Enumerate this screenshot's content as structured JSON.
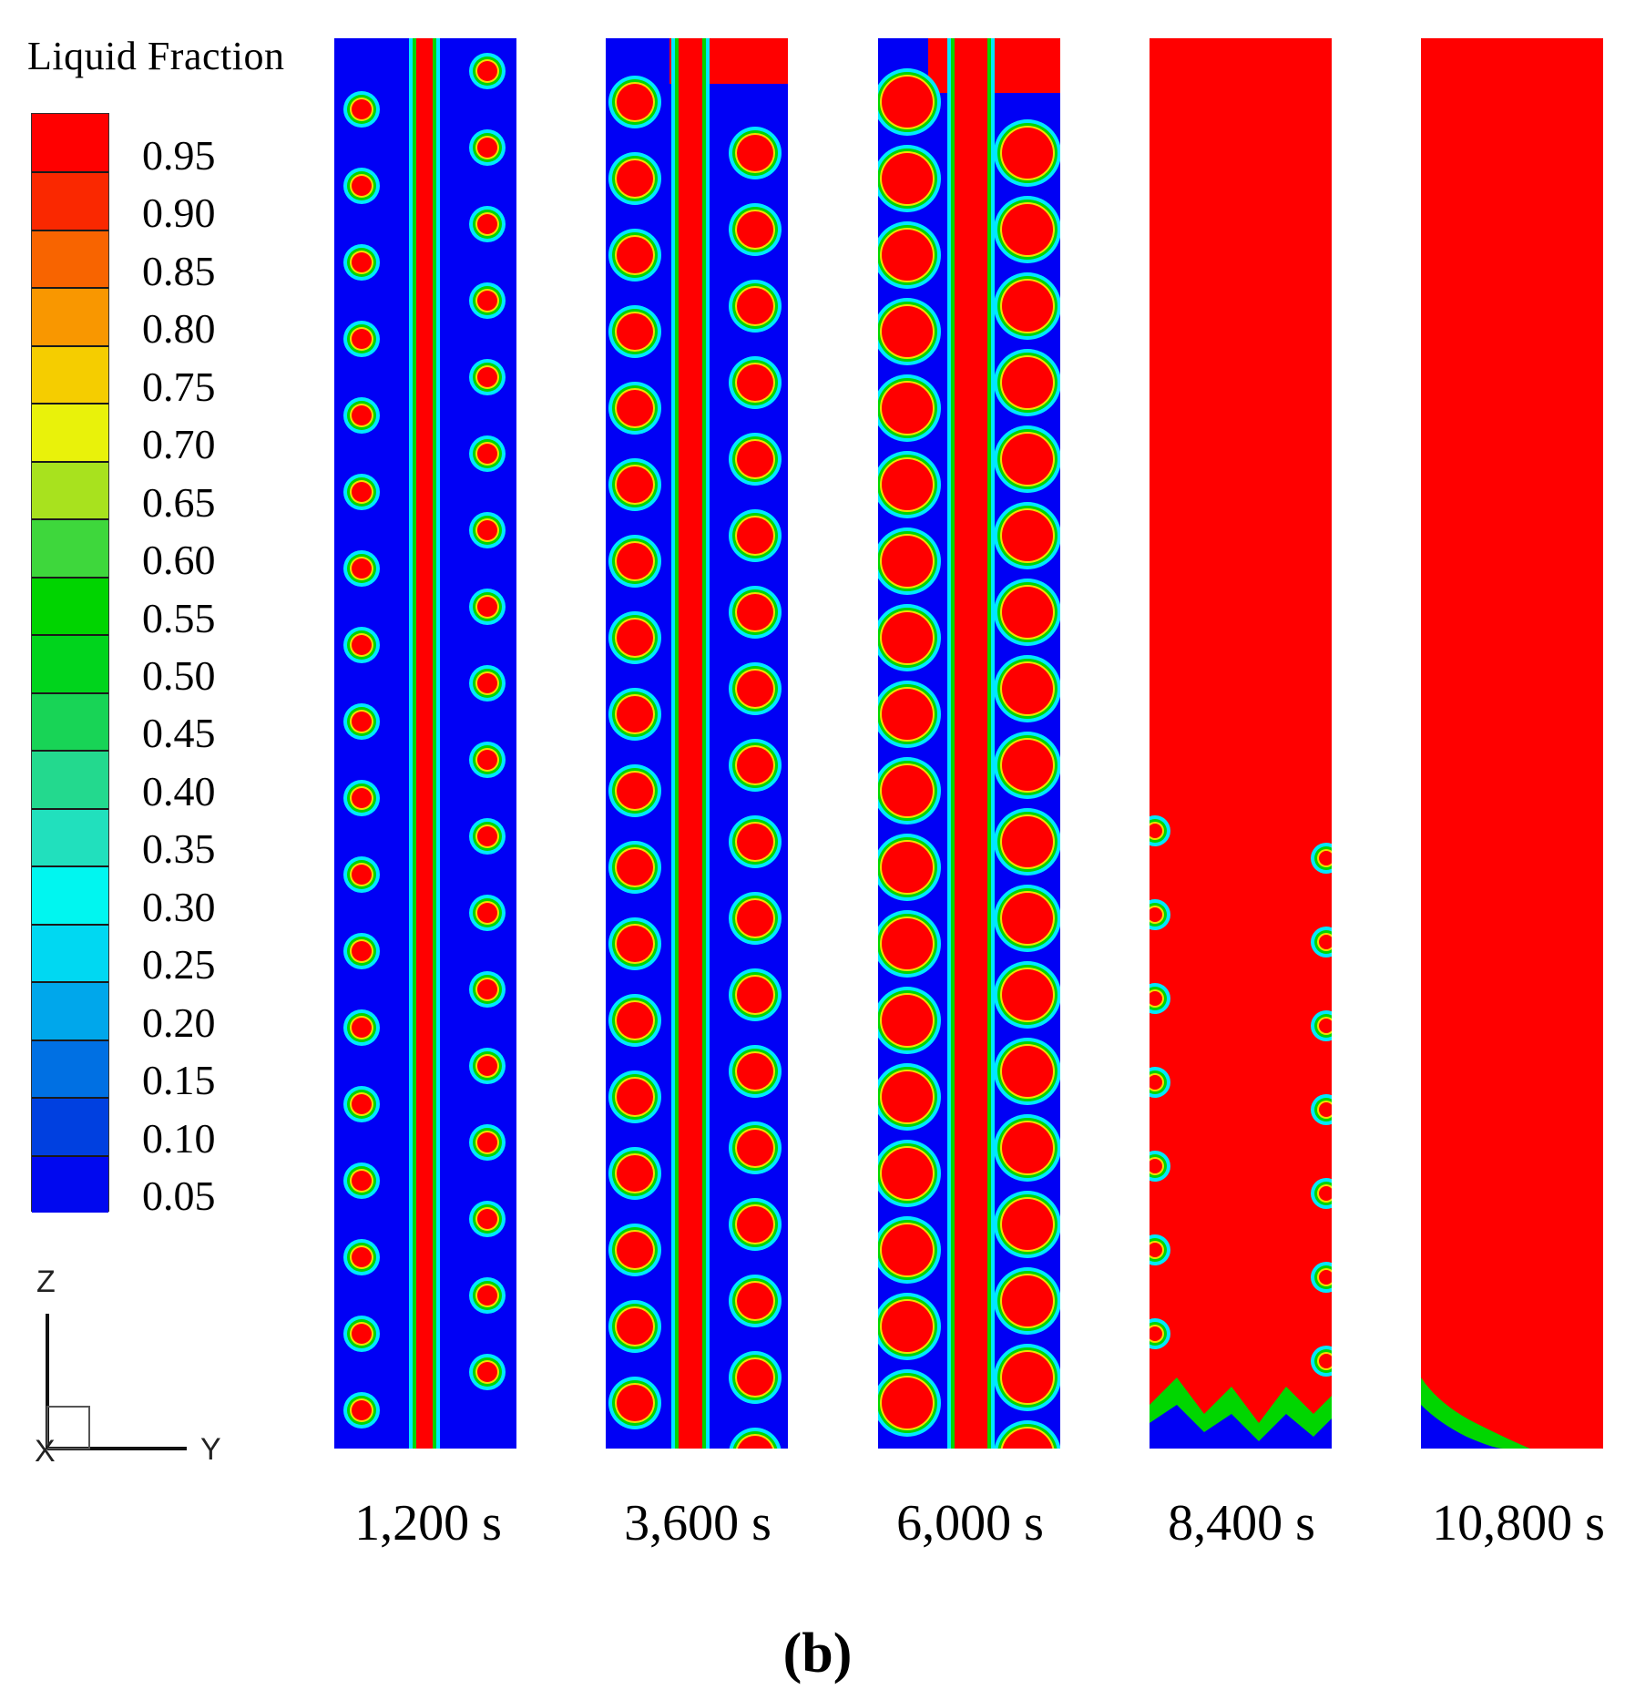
{
  "legend": {
    "title": "Liquid Fraction",
    "levels": [
      "0.95",
      "0.90",
      "0.85",
      "0.80",
      "0.75",
      "0.70",
      "0.65",
      "0.60",
      "0.55",
      "0.50",
      "0.45",
      "0.40",
      "0.35",
      "0.30",
      "0.25",
      "0.20",
      "0.15",
      "0.10",
      "0.05"
    ],
    "colors": [
      "#ff0000",
      "#fa2800",
      "#f86400",
      "#f99700",
      "#f5cd00",
      "#e9f20a",
      "#a8e21e",
      "#3ed73c",
      "#00d400",
      "#00d41c",
      "#18d456",
      "#23d98e",
      "#21e0bd",
      "#00f6f0",
      "#00d8f2",
      "#00a7eb",
      "#0070e3",
      "#0040e0",
      "#0008ef"
    ]
  },
  "axes": {
    "vertical": "Z",
    "horizontal": "Y",
    "normal": "X"
  },
  "colors": {
    "solid": "#0000f5",
    "liquid": "#ff0000",
    "interface_mid": "#00d600",
    "interface_outer": "#00e8ff"
  },
  "panels": [
    {
      "time_label": "1,200 s",
      "melt_fraction_estimate": 0.08
    },
    {
      "time_label": "3,600 s",
      "melt_fraction_estimate": 0.35
    },
    {
      "time_label": "6,000 s",
      "melt_fraction_estimate": 0.55
    },
    {
      "time_label": "8,400 s",
      "melt_fraction_estimate": 0.9
    },
    {
      "time_label": "10,800 s",
      "melt_fraction_estimate": 0.99
    }
  ],
  "caption": "(b)"
}
